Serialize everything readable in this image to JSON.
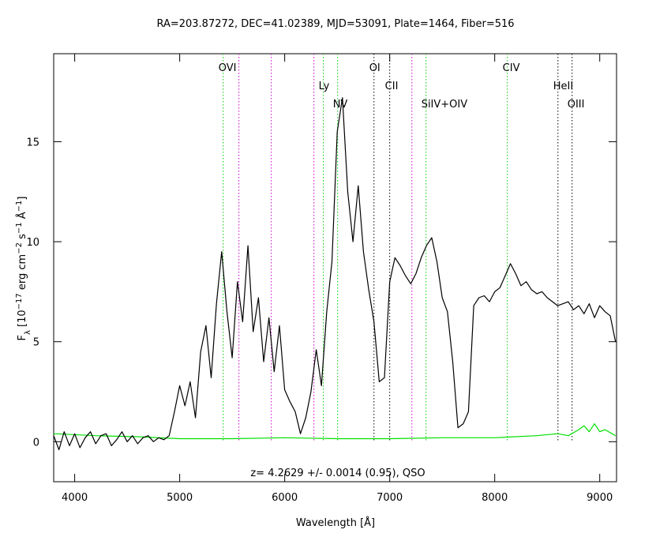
{
  "chart_data": {
    "type": "line",
    "title": "RA=203.87272, DEC=41.02389, MJD=53091, Plate=1464, Fiber=516",
    "xlabel": "Wavelength [Å]",
    "ylabel": [
      "F",
      "λ",
      " [10",
      "−17",
      " erg cm",
      "−2",
      " s",
      "−1",
      " Å",
      "−1",
      "]"
    ],
    "annotation": "z= 4.2629 +/- 0.0014 (0.95), QSO",
    "xlim": [
      3800,
      9160
    ],
    "ylim": [
      -2,
      19.4
    ],
    "xticks": [
      4000,
      5000,
      6000,
      7000,
      8000,
      9000
    ],
    "yticks": [
      0,
      5,
      10,
      15
    ],
    "series": [
      {
        "color": "#000000",
        "x": [
          3800,
          3850,
          3900,
          3950,
          4000,
          4050,
          4100,
          4150,
          4200,
          4250,
          4300,
          4350,
          4400,
          4450,
          4500,
          4550,
          4600,
          4650,
          4700,
          4750,
          4800,
          4850,
          4900,
          4950,
          5000,
          5050,
          5100,
          5150,
          5200,
          5250,
          5300,
          5350,
          5400,
          5450,
          5500,
          5550,
          5600,
          5650,
          5700,
          5750,
          5800,
          5850,
          5900,
          5950,
          6000,
          6050,
          6100,
          6150,
          6200,
          6250,
          6300,
          6350,
          6400,
          6450,
          6500,
          6550,
          6600,
          6650,
          6700,
          6750,
          6800,
          6850,
          6900,
          6950,
          7000,
          7050,
          7100,
          7150,
          7200,
          7250,
          7300,
          7350,
          7400,
          7450,
          7500,
          7550,
          7600,
          7650,
          7700,
          7750,
          7800,
          7850,
          7900,
          7950,
          8000,
          8050,
          8100,
          8150,
          8200,
          8250,
          8300,
          8350,
          8400,
          8450,
          8500,
          8550,
          8600,
          8650,
          8700,
          8750,
          8800,
          8850,
          8900,
          8950,
          9000,
          9050,
          9100,
          9150
        ],
        "values": [
          0.3,
          -0.4,
          0.5,
          -0.2,
          0.4,
          -0.3,
          0.2,
          0.5,
          -0.1,
          0.3,
          0.4,
          -0.2,
          0.1,
          0.5,
          0.0,
          0.3,
          -0.1,
          0.2,
          0.3,
          0.0,
          0.2,
          0.1,
          0.3,
          1.5,
          2.8,
          1.8,
          3.0,
          1.2,
          4.5,
          5.8,
          3.2,
          6.9,
          9.5,
          6.5,
          4.2,
          8.0,
          6.0,
          9.8,
          5.5,
          7.2,
          4.0,
          6.2,
          3.5,
          5.8,
          2.6,
          2.0,
          1.5,
          0.4,
          1.2,
          2.5,
          4.6,
          2.8,
          6.5,
          9.0,
          15.5,
          17.2,
          12.5,
          10.0,
          12.8,
          9.5,
          7.6,
          6.0,
          3.0,
          3.2,
          8.0,
          9.2,
          8.8,
          8.3,
          7.9,
          8.4,
          9.2,
          9.8,
          10.2,
          9.0,
          7.2,
          6.5,
          4.0,
          0.7,
          0.9,
          1.5,
          6.8,
          7.2,
          7.3,
          7.0,
          7.5,
          7.7,
          8.3,
          8.9,
          8.4,
          7.8,
          8.0,
          7.6,
          7.4,
          7.5,
          7.2,
          7.0,
          6.8,
          6.9,
          7.0,
          6.6,
          6.8,
          6.4,
          6.9,
          6.2,
          6.8,
          6.5,
          6.3,
          5.0
        ]
      },
      {
        "color": "#00e000",
        "x": [
          3800,
          4200,
          4600,
          5000,
          5500,
          6000,
          6500,
          7000,
          7500,
          8000,
          8400,
          8600,
          8700,
          8800,
          8850,
          8900,
          8950,
          9000,
          9050,
          9150
        ],
        "values": [
          0.4,
          0.3,
          0.25,
          0.15,
          0.15,
          0.2,
          0.15,
          0.15,
          0.2,
          0.2,
          0.3,
          0.4,
          0.3,
          0.6,
          0.8,
          0.5,
          0.9,
          0.5,
          0.6,
          0.3
        ]
      }
    ],
    "lines": [
      {
        "x": 5414,
        "color": "#00cc00",
        "label": "OVI"
      },
      {
        "x": 5564,
        "color": "#cc00cc"
      },
      {
        "x": 5872,
        "color": "#cc00cc"
      },
      {
        "x": 6278,
        "color": "#cc00cc"
      },
      {
        "x": 6368,
        "color": "#00cc00",
        "label": "Ly"
      },
      {
        "x": 6504,
        "color": "#00cc00",
        "label": "NV"
      },
      {
        "x": 6850,
        "color": "#000000",
        "label": "OI"
      },
      {
        "x": 7000,
        "color": "#000000",
        "label": "CII"
      },
      {
        "x": 7211,
        "color": "#cc00cc"
      },
      {
        "x": 7346,
        "color": "#00cc00",
        "label": "SiIV+OIV"
      },
      {
        "x": 8120,
        "color": "#00cc00",
        "label": "CIV"
      },
      {
        "x": 8602,
        "color": "#000000",
        "label": "HeII"
      },
      {
        "x": 8737,
        "color": "#000000",
        "label": "OIII"
      }
    ]
  }
}
